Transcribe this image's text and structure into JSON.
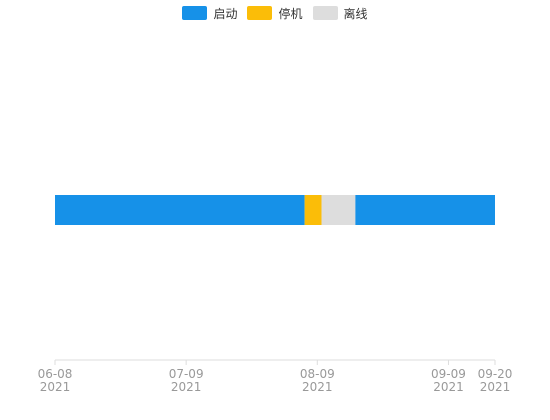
{
  "chart_data": {
    "type": "bar",
    "orientation": "horizontal-timeline",
    "legend_position": "top-center",
    "grid": false,
    "categories": [
      {
        "label": "启动",
        "color": "#1691e8"
      },
      {
        "label": "停机",
        "color": "#fbbd08"
      },
      {
        "label": "离线",
        "color": "#dddddd"
      }
    ],
    "segments": [
      {
        "state": "启动",
        "start": "2021-06-08",
        "end": "2021-08-06",
        "color": "#1691e8"
      },
      {
        "state": "停机",
        "start": "2021-08-06",
        "end": "2021-08-10",
        "color": "#fbbd08"
      },
      {
        "state": "离线",
        "start": "2021-08-10",
        "end": "2021-08-18",
        "color": "#dddddd"
      },
      {
        "state": "启动",
        "start": "2021-08-18",
        "end": "2021-09-20",
        "color": "#1691e8"
      }
    ],
    "x_ticks": [
      {
        "date": "2021-06-08",
        "md": "06-08",
        "year": "2021"
      },
      {
        "date": "2021-07-09",
        "md": "07-09",
        "year": "2021"
      },
      {
        "date": "2021-08-09",
        "md": "08-09",
        "year": "2021"
      },
      {
        "date": "2021-09-09",
        "md": "09-09",
        "year": "2021"
      },
      {
        "date": "2021-09-20",
        "md": "09-20",
        "year": "2021"
      }
    ],
    "xlim": [
      "2021-06-08",
      "2021-09-20"
    ]
  }
}
